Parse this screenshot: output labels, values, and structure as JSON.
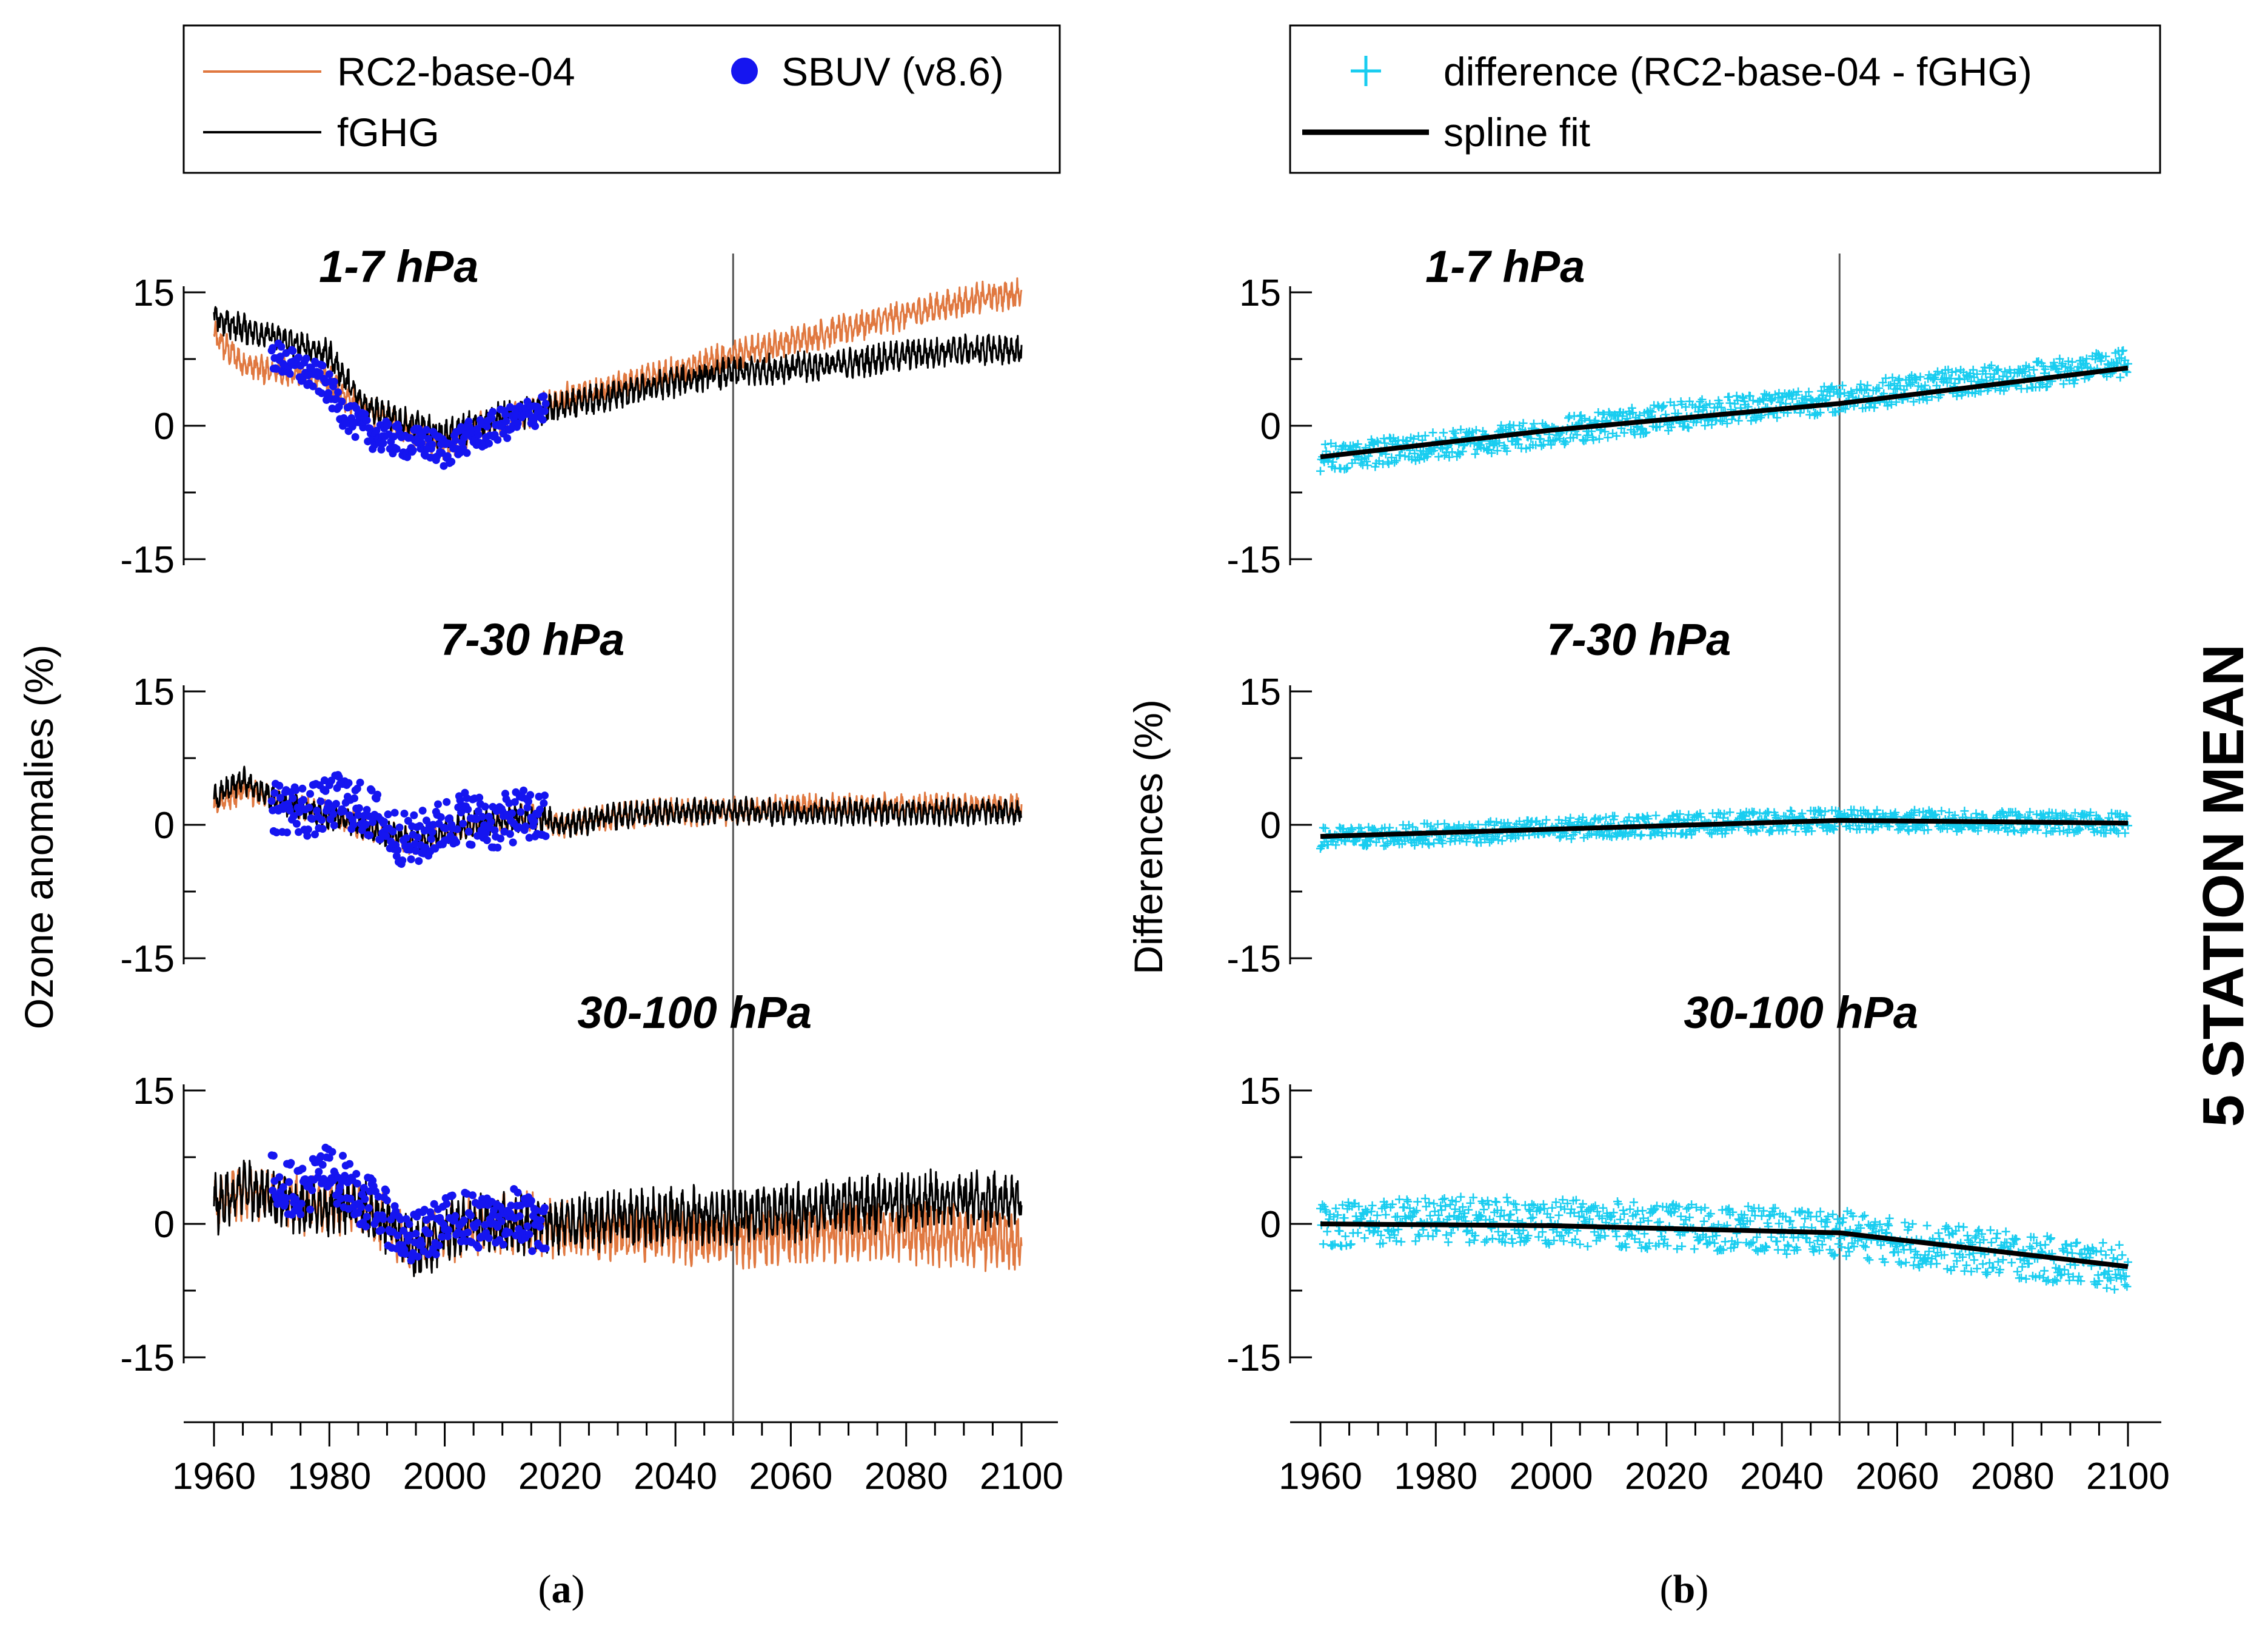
{
  "figure": {
    "side_label": "5 STATION MEAN",
    "captions": [
      {
        "open": "(",
        "letter": "a",
        "close": ")"
      },
      {
        "open": "(",
        "letter": "b",
        "close": ")"
      }
    ]
  },
  "legends": {
    "a": {
      "rc2": "RC2-base-04",
      "sbuv": "SBUV (v8.6)",
      "fghg": "fGHG"
    },
    "b": {
      "diff": "difference (RC2-base-04 - fGHG)",
      "spline": "spline fit"
    }
  },
  "colors": {
    "rc2": "#e07840",
    "fghg": "#000000",
    "sbuv": "#1515f0",
    "diff": "#19cdf0",
    "spline": "#000000",
    "refline": "#555555"
  },
  "chart_data": [
    {
      "type": "line",
      "panel": "a",
      "ylabel": "Ozone anomalies (%)",
      "xlabel": "",
      "xlim": [
        1955,
        2115
      ],
      "xticks": [
        "1960",
        "1980",
        "2000",
        "2020",
        "2040",
        "2060",
        "2080",
        "2100"
      ],
      "yticks": [
        "15",
        "0",
        "-15"
      ],
      "reference_line_x": 2050,
      "subplots": [
        {
          "title": "1-7 hPa",
          "ylim": [
            -22,
            22
          ],
          "series": [
            {
              "name": "RC2-base-04",
              "x": [
                1960,
                1965,
                1970,
                1975,
                1980,
                1985,
                1990,
                1995,
                2000,
                2005,
                2010,
                2015,
                2020,
                2030,
                2040,
                2050,
                2060,
                2070,
                2080,
                2090,
                2100
              ],
              "y": [
                10,
                7,
                6,
                6,
                5,
                2,
                1,
                -1,
                -2,
                -0.5,
                0.5,
                1.5,
                3,
                4.5,
                6,
                8,
                9.5,
                11,
                12.5,
                14,
                15
              ]
            },
            {
              "name": "fGHG",
              "x": [
                1960,
                1965,
                1970,
                1975,
                1980,
                1985,
                1990,
                1995,
                2000,
                2005,
                2010,
                2015,
                2020,
                2030,
                2040,
                2050,
                2060,
                2070,
                2080,
                2090,
                2100
              ],
              "y": [
                12,
                11,
                10,
                9,
                8,
                3,
                1,
                0,
                -1,
                0,
                1,
                1.5,
                2,
                3.5,
                5,
                6,
                6.5,
                7,
                8,
                8.5,
                8.5
              ]
            },
            {
              "name": "SBUV (v8.6)",
              "x": [
                1970,
                1973,
                1976,
                1979,
                1982,
                1985,
                1988,
                1991,
                1994,
                1997,
                2000,
                2003,
                2006,
                2009,
                2012,
                2015,
                2017
              ],
              "y": [
                8,
                7,
                6,
                5,
                2,
                0,
                -1,
                -1.5,
                -2,
                -2,
                -3,
                -1.5,
                -1,
                0,
                0.5,
                1.5,
                2
              ]
            }
          ]
        },
        {
          "title": "7-30 hPa",
          "ylim": [
            -22,
            22
          ],
          "series": [
            {
              "name": "RC2-base-04",
              "x": [
                1960,
                1965,
                1970,
                1975,
                1980,
                1985,
                1990,
                1995,
                2000,
                2005,
                2010,
                2015,
                2020,
                2030,
                2040,
                2050,
                2060,
                2070,
                2080,
                2090,
                2100
              ],
              "y": [
                2,
                4,
                3,
                2,
                1,
                0,
                -1,
                -2,
                -1,
                0,
                0.5,
                1,
                0,
                1,
                1.5,
                1.5,
                2,
                2,
                2,
                2,
                2
              ]
            },
            {
              "name": "fGHG",
              "x": [
                1960,
                1965,
                1970,
                1975,
                1980,
                1985,
                1990,
                1995,
                2000,
                2005,
                2010,
                2015,
                2020,
                2030,
                2040,
                2050,
                2060,
                2070,
                2080,
                2090,
                2100
              ],
              "y": [
                3,
                5,
                3,
                2,
                1,
                0,
                -1,
                -2,
                -1,
                0,
                0.5,
                1,
                0,
                1,
                1.5,
                1.5,
                1.5,
                1.5,
                1.5,
                1.5,
                1.5
              ]
            },
            {
              "name": "SBUV (v8.6)",
              "x": [
                1970,
                1973,
                1976,
                1979,
                1982,
                1985,
                1988,
                1991,
                1994,
                1997,
                2000,
                2003,
                2006,
                2009,
                2012,
                2015,
                2017
              ],
              "y": [
                2,
                2,
                1.5,
                2,
                3,
                2,
                1,
                -1,
                -2,
                -1,
                0,
                1,
                0.5,
                0,
                1,
                1,
                0.5
              ]
            }
          ]
        },
        {
          "title": "30-100 hPa",
          "ylim": [
            -22,
            22
          ],
          "series": [
            {
              "name": "RC2-base-04",
              "x": [
                1960,
                1965,
                1970,
                1975,
                1980,
                1985,
                1990,
                1995,
                2000,
                2005,
                2010,
                2015,
                2020,
                2030,
                2040,
                2050,
                2060,
                2070,
                2080,
                2090,
                2100
              ],
              "y": [
                2,
                4,
                3,
                2,
                2,
                2,
                0,
                -3,
                -1,
                0,
                0,
                0,
                -1,
                -1,
                -1,
                -1.5,
                -1,
                -1,
                -1,
                -1.5,
                -2
              ]
            },
            {
              "name": "fGHG",
              "x": [
                1960,
                1965,
                1970,
                1975,
                1980,
                1985,
                1990,
                1995,
                2000,
                2005,
                2010,
                2015,
                2020,
                2030,
                2040,
                2050,
                2060,
                2070,
                2080,
                2090,
                2100
              ],
              "y": [
                2,
                4,
                3,
                2,
                2,
                2,
                0,
                -3,
                -1,
                0,
                0,
                0,
                0,
                0.5,
                1,
                1,
                1.5,
                2,
                2.5,
                2.5,
                3
              ]
            },
            {
              "name": "SBUV (v8.6)",
              "x": [
                1970,
                1973,
                1976,
                1979,
                1982,
                1985,
                1988,
                1991,
                1994,
                1997,
                2000,
                2003,
                2006,
                2009,
                2012,
                2015,
                2017
              ],
              "y": [
                5,
                4,
                4,
                6,
                5,
                3,
                2,
                0,
                -2,
                -1,
                0,
                1,
                0,
                0,
                1,
                0,
                -1
              ]
            }
          ]
        }
      ]
    },
    {
      "type": "scatter",
      "panel": "b",
      "ylabel": "Differences (%)",
      "xlabel": "",
      "xlim": [
        1955,
        2115
      ],
      "xticks": [
        "1960",
        "1980",
        "2000",
        "2020",
        "2040",
        "2060",
        "2080",
        "2100"
      ],
      "yticks": [
        "15",
        "0",
        "-15"
      ],
      "reference_line_x": 2050,
      "subplots": [
        {
          "title": "1-7 hPa",
          "ylim": [
            -22,
            22
          ],
          "series": [
            {
              "name": "difference (RC2-base-04 - fGHG)",
              "x": [
                1960,
                1970,
                1980,
                1990,
                2000,
                2010,
                2020,
                2030,
                2040,
                2050,
                2060,
                2070,
                2080,
                2090,
                2100
              ],
              "y": [
                -3.5,
                -3,
                -2.3,
                -1.5,
                -0.7,
                0.2,
                1,
                1.8,
                2.5,
                3,
                4,
                4.8,
                5.5,
                6.2,
                7
              ]
            },
            {
              "name": "spline fit",
              "x": [
                1960,
                2000,
                2050,
                2100
              ],
              "y": [
                -3.5,
                -0.5,
                2.5,
                6.5
              ]
            }
          ]
        },
        {
          "title": "7-30 hPa",
          "ylim": [
            -22,
            22
          ],
          "series": [
            {
              "name": "difference (RC2-base-04 - fGHG)",
              "x": [
                1960,
                1970,
                1980,
                1990,
                2000,
                2010,
                2020,
                2030,
                2040,
                2050,
                2060,
                2070,
                2080,
                2090,
                2100
              ],
              "y": [
                -1.5,
                -1.3,
                -1,
                -0.8,
                -0.5,
                -0.2,
                0,
                0.2,
                0.4,
                0.5,
                0.5,
                0.4,
                0.3,
                0.2,
                0.2
              ]
            },
            {
              "name": "spline fit",
              "x": [
                1960,
                2000,
                2050,
                2100
              ],
              "y": [
                -1.3,
                -0.5,
                0.5,
                0.2
              ]
            }
          ]
        },
        {
          "title": "30-100 hPa",
          "ylim": [
            -22,
            22
          ],
          "series": [
            {
              "name": "difference (RC2-base-04 - fGHG)",
              "x": [
                1960,
                1970,
                1980,
                1990,
                2000,
                2010,
                2020,
                2030,
                2040,
                2050,
                2060,
                2070,
                2080,
                2090,
                2100
              ],
              "y": [
                0,
                0.2,
                0.5,
                0.5,
                0.2,
                0,
                -0.3,
                -0.5,
                -0.8,
                -1,
                -2,
                -2.8,
                -3.5,
                -4.3,
                -5
              ]
            },
            {
              "name": "spline fit",
              "x": [
                1960,
                2000,
                2050,
                2100
              ],
              "y": [
                0,
                -0.2,
                -1,
                -4.8
              ]
            }
          ]
        }
      ]
    }
  ]
}
